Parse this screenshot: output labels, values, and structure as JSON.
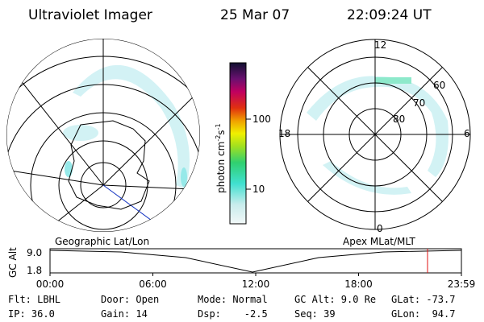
{
  "header": {
    "title": "Ultraviolet Imager",
    "date": "25 Mar 07",
    "time": "22:09:24 UT"
  },
  "colorbar": {
    "label": "photon cm",
    "label_sup1": "-2",
    "label_mid": "s",
    "label_sup2": "-1",
    "ticks": [
      "100",
      "10"
    ]
  },
  "polar_map": {
    "mlt_labels": {
      "top": "12",
      "bottom": "0",
      "left": "18",
      "right": "6"
    },
    "lat_labels": [
      "80",
      "70",
      "60"
    ]
  },
  "timeline": {
    "left_title": "Geographic Lat/Lon",
    "right_title": "Apex MLat/MLT",
    "axis_label": "GC Alt",
    "alt_ticks": [
      "9.0",
      "1.8"
    ],
    "time_ticks": [
      "00:00",
      "06:00",
      "12:00",
      "18:00",
      "23:59"
    ]
  },
  "footer": {
    "rows": [
      [
        "Flt: LBHL",
        "Door: Open",
        "Mode: Normal",
        "GC Alt: 9.0 Re",
        "GLat: -73.7"
      ],
      [
        "IP: 36.0",
        "Gain: 14",
        "Dsp:    -2.5",
        "Seq: 39",
        "GLon:  94.7"
      ]
    ]
  }
}
